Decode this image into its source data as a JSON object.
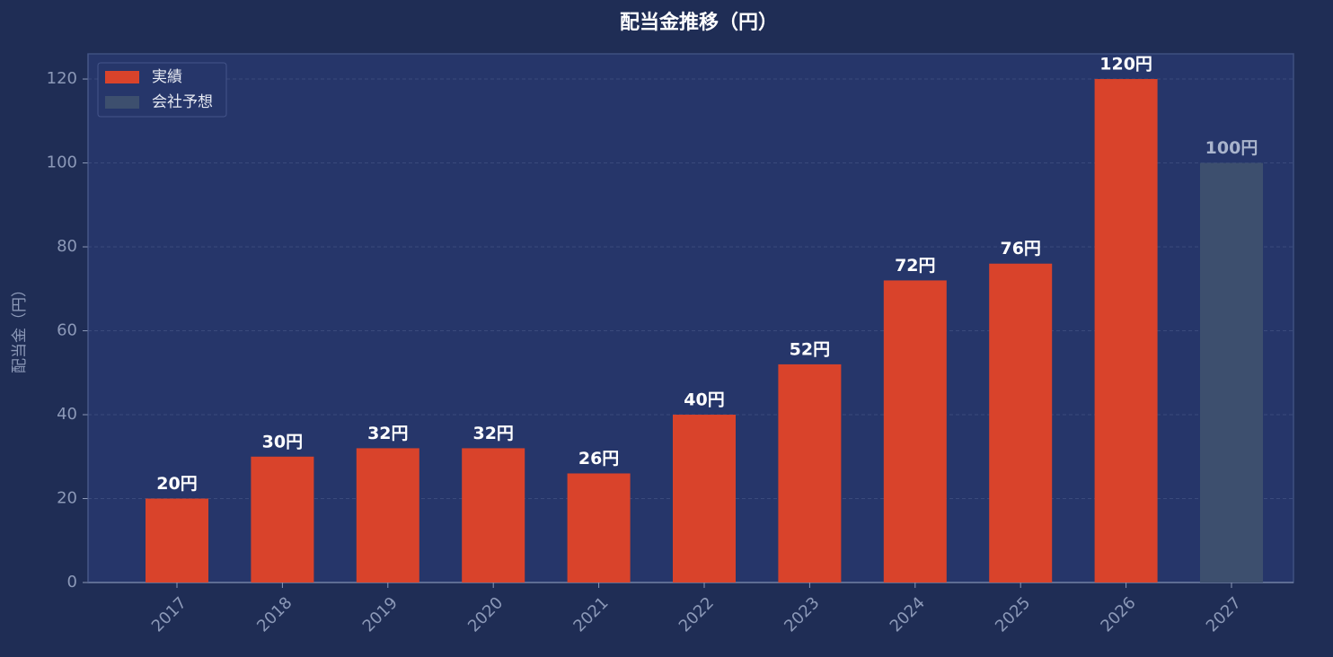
{
  "chart_data": {
    "type": "bar",
    "title": "配当金推移（円）",
    "y_label": "配当金（円）",
    "categories": [
      "2017",
      "2018",
      "2019",
      "2020",
      "2021",
      "2022",
      "2023",
      "2024",
      "2025",
      "2026",
      "2027"
    ],
    "series": [
      {
        "name": "実績",
        "color": "#d9432b",
        "values": [
          20,
          30,
          32,
          32,
          26,
          40,
          52,
          72,
          76,
          120,
          null
        ],
        "value_labels": [
          "20円",
          "30円",
          "32円",
          "32円",
          "26円",
          "40円",
          "52円",
          "72円",
          "76円",
          "120円",
          null
        ]
      },
      {
        "name": "会社予想",
        "color": "#3d4f6e",
        "values": [
          null,
          null,
          null,
          null,
          null,
          null,
          null,
          null,
          null,
          null,
          100
        ],
        "value_labels": [
          null,
          null,
          null,
          null,
          null,
          null,
          null,
          null,
          null,
          null,
          "100円"
        ]
      }
    ],
    "ylim": [
      0,
      126
    ],
    "yticks": [
      0,
      20,
      40,
      60,
      80,
      100,
      120
    ],
    "grid": true,
    "legend": "upper left"
  }
}
